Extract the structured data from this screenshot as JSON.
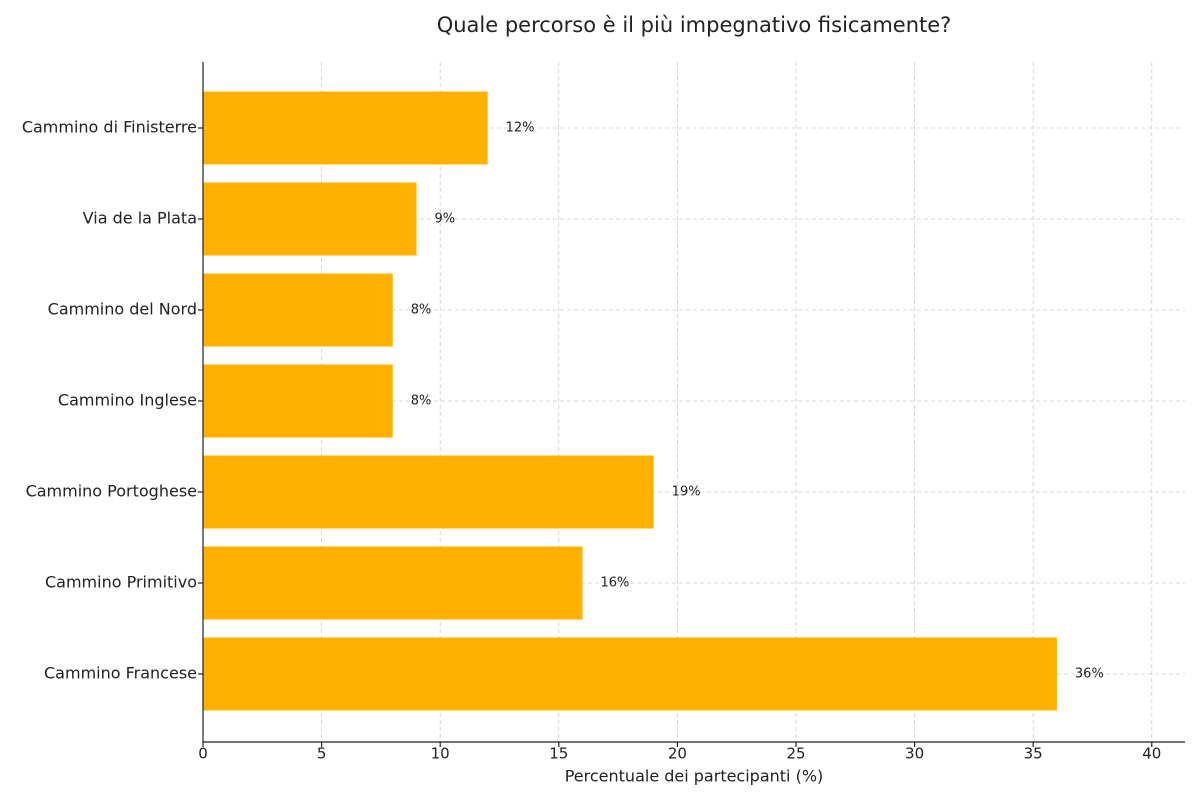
{
  "chart_data": {
    "type": "barh",
    "title": "Quale percorso è il più impegnativo fisicamente?",
    "x_label": "Percentuale dei partecipanti (%)",
    "categories": [
      "Cammino di Finisterre",
      "Via de la Plata",
      "Cammino del Nord",
      "Cammino Inglese",
      "Cammino Portoghese",
      "Cammino Primitivo",
      "Cammino Francese"
    ],
    "values": [
      12,
      9,
      8,
      8,
      19,
      16,
      36
    ],
    "value_labels": [
      "12%",
      "9%",
      "8%",
      "8%",
      "19%",
      "16%",
      "36%"
    ],
    "color": "#ffb000",
    "xlim": [
      0,
      41.4
    ],
    "xticks": [
      0,
      5,
      10,
      15,
      20,
      25,
      30,
      35,
      40
    ],
    "grid": true
  }
}
